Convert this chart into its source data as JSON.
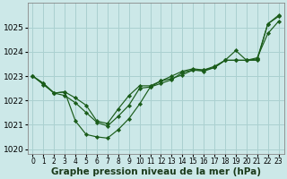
{
  "background_color": "#cce8e8",
  "grid_color": "#aad0d0",
  "line_color": "#1a5c1a",
  "marker_color": "#1a5c1a",
  "xlabel": "Graphe pression niveau de la mer (hPa)",
  "xlabel_fontsize": 7.5,
  "tick_fontsize": 6.5,
  "ylim": [
    1019.8,
    1026.0
  ],
  "yticks": [
    1020,
    1021,
    1022,
    1023,
    1024,
    1025
  ],
  "xlim": [
    -0.5,
    23.5
  ],
  "xticks": [
    0,
    1,
    2,
    3,
    4,
    5,
    6,
    7,
    8,
    9,
    10,
    11,
    12,
    13,
    14,
    15,
    16,
    17,
    18,
    19,
    20,
    21,
    22,
    23
  ],
  "series": [
    [
      1023.0,
      1022.7,
      1022.3,
      1022.2,
      1021.9,
      1021.5,
      1021.1,
      1020.95,
      1021.35,
      1021.8,
      1022.5,
      1022.55,
      1022.8,
      1023.0,
      1023.2,
      1023.3,
      1023.25,
      1023.4,
      1023.65,
      1023.65,
      1023.65,
      1023.7,
      1025.15,
      1025.5
    ],
    [
      1023.0,
      1022.7,
      1022.3,
      1022.35,
      1021.15,
      1020.6,
      1020.5,
      1020.45,
      1020.8,
      1021.25,
      1021.85,
      1022.55,
      1022.7,
      1022.85,
      1023.15,
      1023.25,
      1023.25,
      1023.35,
      1023.65,
      1024.05,
      1023.65,
      1023.65,
      1025.15,
      1025.45
    ],
    [
      1023.0,
      1022.65,
      1022.3,
      1022.35,
      1022.1,
      1021.8,
      1021.15,
      1021.05,
      1021.65,
      1022.2,
      1022.6,
      1022.6,
      1022.8,
      1022.9,
      1023.05,
      1023.25,
      1023.2,
      1023.35,
      1023.65,
      1023.65,
      1023.65,
      1023.75,
      1024.75,
      1025.25
    ]
  ]
}
